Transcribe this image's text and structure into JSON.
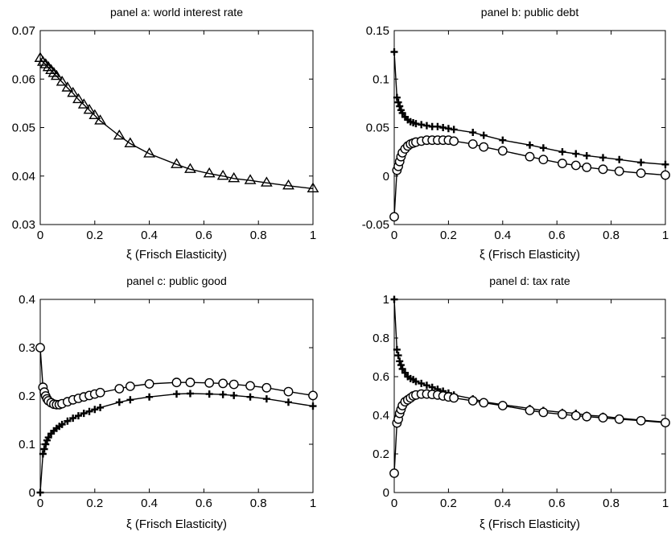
{
  "chart_data": [
    {
      "type": "line",
      "title": "panel a: world interest rate",
      "xlabel": "ξ (Frisch Elasticity)",
      "ylabel": "",
      "xlim": [
        0,
        1
      ],
      "ylim": [
        0.03,
        0.07
      ],
      "xticks": [
        0,
        0.2,
        0.4,
        0.6,
        0.8,
        1
      ],
      "xtick_labels": [
        "0",
        "0.2",
        "0.4",
        "0.6",
        "0.8",
        "1"
      ],
      "yticks": [
        0.03,
        0.04,
        0.05,
        0.06,
        0.07
      ],
      "ytick_labels": [
        "0.03",
        "0.04",
        "0.05",
        "0.06",
        "0.07"
      ],
      "grid": false,
      "series": [
        {
          "marker": "triangle",
          "x": [
            0,
            0.01,
            0.02,
            0.03,
            0.04,
            0.05,
            0.06,
            0.08,
            0.1,
            0.12,
            0.14,
            0.16,
            0.18,
            0.2,
            0.22,
            0.29,
            0.33,
            0.4,
            0.5,
            0.55,
            0.62,
            0.67,
            0.71,
            0.77,
            0.83,
            0.91,
            1.0
          ],
          "y": [
            0.0643,
            0.0635,
            0.063,
            0.0624,
            0.0618,
            0.0612,
            0.0606,
            0.0594,
            0.0582,
            0.0571,
            0.0558,
            0.0547,
            0.0536,
            0.0525,
            0.0514,
            0.0483,
            0.0467,
            0.0446,
            0.0424,
            0.0414,
            0.0405,
            0.04,
            0.0395,
            0.0391,
            0.0386,
            0.038,
            0.0374
          ]
        }
      ]
    },
    {
      "type": "line",
      "title": "panel b: public debt",
      "xlabel": "ξ (Frisch Elasticity)",
      "ylabel": "",
      "xlim": [
        0,
        1
      ],
      "ylim": [
        -0.05,
        0.15
      ],
      "xticks": [
        0,
        0.2,
        0.4,
        0.6,
        0.8,
        1
      ],
      "xtick_labels": [
        "0",
        "0.2",
        "0.4",
        "0.6",
        "0.8",
        "1"
      ],
      "yticks": [
        -0.05,
        0,
        0.05,
        0.1,
        0.15
      ],
      "ytick_labels": [
        "-0.05",
        "0",
        "0.05",
        "0.1",
        "0.15"
      ],
      "grid": false,
      "series": [
        {
          "marker": "plus",
          "x": [
            0,
            0.01,
            0.015,
            0.02,
            0.025,
            0.03,
            0.04,
            0.05,
            0.06,
            0.07,
            0.08,
            0.1,
            0.12,
            0.14,
            0.16,
            0.18,
            0.2,
            0.22,
            0.29,
            0.33,
            0.4,
            0.5,
            0.55,
            0.62,
            0.67,
            0.71,
            0.77,
            0.83,
            0.91,
            1.0
          ],
          "y": [
            0.128,
            0.081,
            0.076,
            0.072,
            0.068,
            0.065,
            0.061,
            0.058,
            0.056,
            0.055,
            0.054,
            0.053,
            0.052,
            0.051,
            0.051,
            0.05,
            0.049,
            0.048,
            0.045,
            0.042,
            0.037,
            0.032,
            0.029,
            0.025,
            0.023,
            0.021,
            0.019,
            0.017,
            0.014,
            0.012
          ]
        },
        {
          "marker": "circle",
          "x": [
            0,
            0.01,
            0.015,
            0.02,
            0.025,
            0.03,
            0.04,
            0.05,
            0.06,
            0.07,
            0.08,
            0.1,
            0.12,
            0.14,
            0.16,
            0.18,
            0.2,
            0.22,
            0.29,
            0.33,
            0.4,
            0.5,
            0.55,
            0.62,
            0.67,
            0.71,
            0.77,
            0.83,
            0.91,
            1.0
          ],
          "y": [
            -0.042,
            0.006,
            0.01,
            0.015,
            0.02,
            0.024,
            0.028,
            0.031,
            0.033,
            0.034,
            0.035,
            0.036,
            0.037,
            0.037,
            0.037,
            0.037,
            0.037,
            0.036,
            0.033,
            0.03,
            0.026,
            0.02,
            0.017,
            0.013,
            0.011,
            0.009,
            0.007,
            0.005,
            0.003,
            0.001
          ]
        }
      ]
    },
    {
      "type": "line",
      "title": "panel c: public good",
      "xlabel": "ξ (Frisch Elasticity)",
      "ylabel": "",
      "xlim": [
        0,
        1
      ],
      "ylim": [
        0,
        0.4
      ],
      "xticks": [
        0,
        0.2,
        0.4,
        0.6,
        0.8,
        1
      ],
      "xtick_labels": [
        "0",
        "0.2",
        "0.4",
        "0.6",
        "0.8",
        "1"
      ],
      "yticks": [
        0,
        0.1,
        0.2,
        0.3,
        0.4
      ],
      "ytick_labels": [
        "0",
        "0.1",
        "0.2",
        "0.3",
        "0.4"
      ],
      "grid": false,
      "series": [
        {
          "marker": "circle",
          "x": [
            0,
            0.01,
            0.015,
            0.02,
            0.025,
            0.03,
            0.04,
            0.05,
            0.06,
            0.07,
            0.08,
            0.1,
            0.12,
            0.14,
            0.16,
            0.18,
            0.2,
            0.22,
            0.29,
            0.33,
            0.4,
            0.5,
            0.55,
            0.62,
            0.67,
            0.71,
            0.77,
            0.83,
            0.91,
            1.0
          ],
          "y": [
            0.3,
            0.218,
            0.208,
            0.2,
            0.194,
            0.19,
            0.186,
            0.183,
            0.182,
            0.182,
            0.184,
            0.188,
            0.192,
            0.195,
            0.198,
            0.201,
            0.204,
            0.207,
            0.215,
            0.22,
            0.225,
            0.228,
            0.228,
            0.227,
            0.226,
            0.224,
            0.221,
            0.217,
            0.209,
            0.201
          ]
        },
        {
          "marker": "plus",
          "x": [
            0,
            0.01,
            0.015,
            0.02,
            0.025,
            0.03,
            0.04,
            0.05,
            0.06,
            0.07,
            0.08,
            0.1,
            0.12,
            0.14,
            0.16,
            0.18,
            0.2,
            0.22,
            0.29,
            0.33,
            0.4,
            0.5,
            0.55,
            0.62,
            0.67,
            0.71,
            0.77,
            0.83,
            0.91,
            1.0
          ],
          "y": [
            0.0,
            0.08,
            0.09,
            0.1,
            0.108,
            0.114,
            0.122,
            0.128,
            0.133,
            0.137,
            0.141,
            0.148,
            0.154,
            0.159,
            0.164,
            0.168,
            0.172,
            0.176,
            0.187,
            0.192,
            0.198,
            0.204,
            0.205,
            0.204,
            0.203,
            0.201,
            0.198,
            0.194,
            0.187,
            0.179
          ]
        }
      ]
    },
    {
      "type": "line",
      "title": "panel d: tax rate",
      "xlabel": "ξ (Frisch Elasticity)",
      "ylabel": "",
      "xlim": [
        0,
        1
      ],
      "ylim": [
        0,
        1
      ],
      "xticks": [
        0,
        0.2,
        0.4,
        0.6,
        0.8,
        1
      ],
      "xtick_labels": [
        "0",
        "0.2",
        "0.4",
        "0.6",
        "0.8",
        "1"
      ],
      "yticks": [
        0,
        0.2,
        0.4,
        0.6,
        0.8,
        1
      ],
      "ytick_labels": [
        "0",
        "0.2",
        "0.4",
        "0.6",
        "0.8",
        "1"
      ],
      "grid": false,
      "series": [
        {
          "marker": "plus",
          "x": [
            0,
            0.01,
            0.015,
            0.02,
            0.025,
            0.03,
            0.04,
            0.05,
            0.06,
            0.07,
            0.08,
            0.1,
            0.12,
            0.14,
            0.16,
            0.18,
            0.2,
            0.22,
            0.29,
            0.33,
            0.4,
            0.5,
            0.55,
            0.62,
            0.67,
            0.71,
            0.77,
            0.83,
            0.91,
            1.0
          ],
          "y": [
            1.0,
            0.74,
            0.71,
            0.68,
            0.66,
            0.64,
            0.62,
            0.6,
            0.59,
            0.585,
            0.575,
            0.565,
            0.555,
            0.545,
            0.535,
            0.525,
            0.515,
            0.505,
            0.485,
            0.47,
            0.455,
            0.435,
            0.425,
            0.415,
            0.41,
            0.4,
            0.395,
            0.385,
            0.375,
            0.365
          ]
        },
        {
          "marker": "circle",
          "x": [
            0,
            0.01,
            0.015,
            0.02,
            0.025,
            0.03,
            0.04,
            0.05,
            0.06,
            0.07,
            0.08,
            0.1,
            0.12,
            0.14,
            0.16,
            0.18,
            0.2,
            0.22,
            0.29,
            0.33,
            0.4,
            0.5,
            0.55,
            0.62,
            0.67,
            0.71,
            0.77,
            0.83,
            0.91,
            1.0
          ],
          "y": [
            0.1,
            0.36,
            0.38,
            0.41,
            0.43,
            0.45,
            0.47,
            0.48,
            0.49,
            0.5,
            0.505,
            0.51,
            0.51,
            0.508,
            0.505,
            0.5,
            0.495,
            0.49,
            0.475,
            0.465,
            0.45,
            0.425,
            0.415,
            0.405,
            0.398,
            0.393,
            0.387,
            0.38,
            0.372,
            0.362
          ]
        }
      ]
    }
  ]
}
